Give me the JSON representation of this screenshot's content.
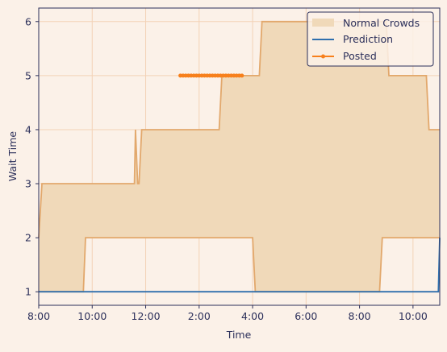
{
  "chart_data": {
    "type": "area",
    "title": "",
    "xlabel": "Time",
    "ylabel": "Wait Time",
    "x_tick_labels": [
      "8:00",
      "10:00",
      "12:00",
      "2:00",
      "4:00",
      "6:00",
      "8:00",
      "10:00"
    ],
    "x_tick_hours": [
      8,
      10,
      12,
      14,
      16,
      18,
      20,
      22
    ],
    "xlim_hours": [
      8,
      23
    ],
    "y_ticks": [
      1,
      2,
      3,
      4,
      5,
      6
    ],
    "ylim": [
      0.75,
      6.25
    ],
    "grid": true,
    "legend_position": "top-right",
    "colors": {
      "background": "#fbf1e8",
      "plot_border": "#2b2f5a",
      "grid": "#f3d2b6",
      "band_fill": "#f0d9b9",
      "band_edge": "#e2a86c",
      "prediction": "#2f6fad",
      "posted": "#f7801c",
      "text": "#2b2f5a"
    },
    "series": [
      {
        "name": "Normal Crowds",
        "kind": "band",
        "x_hours": [
          8.0,
          8.12,
          9.67,
          9.75,
          11.58,
          11.62,
          11.7,
          11.75,
          11.85,
          12.0,
          14.75,
          14.85,
          16.0,
          16.1,
          16.25,
          16.35,
          20.75,
          20.85,
          21.0,
          21.1,
          22.5,
          22.6,
          23.0
        ],
        "upper": [
          2,
          3,
          3,
          3,
          3,
          4,
          3,
          3,
          4,
          4,
          4,
          5,
          5,
          5,
          5,
          6,
          6,
          6,
          6,
          5,
          5,
          4,
          4
        ],
        "lower": [
          1,
          1,
          1,
          2,
          2,
          2,
          2,
          2,
          2,
          2,
          2,
          2,
          2,
          1,
          1,
          1,
          1,
          2,
          2,
          2,
          2,
          2,
          2
        ]
      },
      {
        "name": "Prediction",
        "kind": "line",
        "x_hours": [
          8.0,
          22.95,
          23.0
        ],
        "values": [
          1,
          1,
          2
        ]
      },
      {
        "name": "Posted",
        "kind": "line-markers",
        "x_hours": [
          13.3,
          13.4,
          13.5,
          13.6,
          13.7,
          13.8,
          13.9,
          14.0,
          14.1,
          14.2,
          14.3,
          14.4,
          14.5,
          14.6,
          14.7,
          14.8,
          14.9,
          15.0,
          15.1,
          15.2,
          15.3,
          15.4,
          15.5,
          15.6
        ],
        "values": [
          5,
          5,
          5,
          5,
          5,
          5,
          5,
          5,
          5,
          5,
          5,
          5,
          5,
          5,
          5,
          5,
          5,
          5,
          5,
          5,
          5,
          5,
          5,
          5
        ]
      }
    ]
  }
}
